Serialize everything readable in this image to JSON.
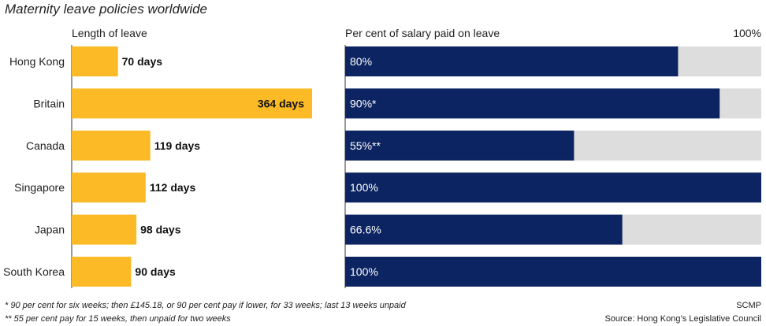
{
  "title": "Maternity leave policies worldwide",
  "colors": {
    "leave_bar": "#FBBA26",
    "salary_bar": "#0C2461",
    "salary_track": "#DDDDDD",
    "axis_line": "#333333"
  },
  "chart_data": [
    {
      "type": "bar",
      "orientation": "horizontal",
      "header": "Length of leave",
      "categories": [
        "Hong Kong",
        "Britain",
        "Canada",
        "Singapore",
        "Japan",
        "South Korea"
      ],
      "values": [
        70,
        364,
        119,
        112,
        98,
        90
      ],
      "value_labels": [
        "70 days",
        "364 days",
        "119 days",
        "112 days",
        "98 days",
        "90 days"
      ],
      "unit": "days",
      "xlim": [
        0,
        364
      ]
    },
    {
      "type": "bar",
      "orientation": "horizontal",
      "stacked_on_track": true,
      "header": "Per cent of salary paid on leave",
      "max_label": "100%",
      "categories": [
        "Hong Kong",
        "Britain",
        "Canada",
        "Singapore",
        "Japan",
        "South Korea"
      ],
      "values": [
        80,
        90,
        55,
        100,
        66.6,
        100
      ],
      "value_labels": [
        "80%",
        "90%*",
        "55%**",
        "100%",
        "66.6%",
        "100%"
      ],
      "unit": "percent",
      "xlim": [
        0,
        100
      ]
    }
  ],
  "footnotes": [
    "* 90 per cent for six weeks; then £145.18, or 90 per cent pay if lower, for 33 weeks; last 13 weeks unpaid",
    "** 55 per cent pay for 15 weeks, then unpaid for two weeks"
  ],
  "credit": "SCMP",
  "source": "Source: Hong Kong’s Legislative Council"
}
